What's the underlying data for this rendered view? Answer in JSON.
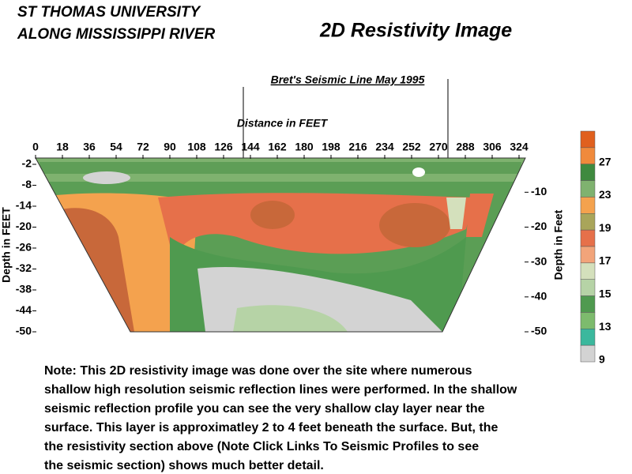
{
  "chart_data": {
    "type": "contour",
    "header": [
      "ST THOMAS UNIVERSITY",
      "ALONG MISSISSIPPI RIVER"
    ],
    "title": "2D Resistivity Image",
    "annotation": "Bret's  Seismic  Line  May  1995",
    "x_label": "Distance in FEET",
    "y_label": "Depth in FEET",
    "y2_label": "Depth in Feet",
    "xlim": [
      0,
      324
    ],
    "xticks": [
      0,
      18,
      36,
      54,
      72,
      90,
      108,
      126,
      144,
      162,
      180,
      198,
      216,
      234,
      252,
      270,
      288,
      306,
      324
    ],
    "ylim": [
      -50,
      -2
    ],
    "yticks": [
      -2,
      -8,
      -14,
      -20,
      -26,
      -32,
      -38,
      -44,
      -50
    ],
    "y2lim": [
      -50,
      -2
    ],
    "y2ticks": [
      -10,
      -20,
      -30,
      -40,
      -50
    ],
    "colorbar": {
      "colors": [
        "#e0601e",
        "#f08a3c",
        "#3f8a3f",
        "#7fb26f",
        "#f4a24e",
        "#a9a55a",
        "#e6704a",
        "#f2a47a",
        "#d4e0bc",
        "#b6d3a6",
        "#4f9a4f",
        "#7dbb6d",
        "#3bb89d",
        "#d3d3d3"
      ],
      "ticks": [
        27,
        23,
        19,
        17,
        15,
        13,
        9
      ]
    },
    "note": [
      "Note:  This 2D resistivity image was done over the site where numerous",
      "shallow high resolution seismic reflection lines were performed.   In the shallow",
      "seismic reflection profile you can see the very shallow clay layer near the",
      "surface.   This layer is approximatley 2 to 4 feet beneath the surface.  But, the",
      "the resistivity section above (Note Click Links To Seismic Profiles to see",
      "the seismic section) shows much better detail."
    ]
  }
}
